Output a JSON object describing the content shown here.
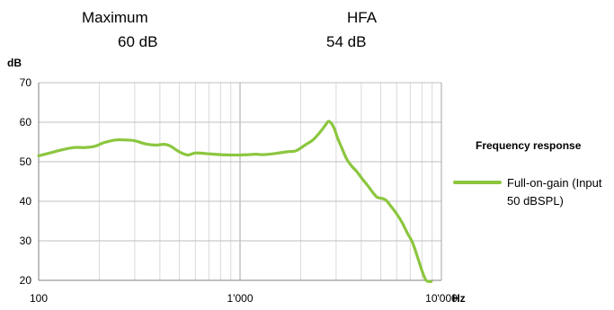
{
  "header": {
    "maximum_label": "Maximum",
    "maximum_value": "60 dB",
    "hfa_label": "HFA",
    "hfa_value": "54 dB"
  },
  "chart_data": {
    "type": "line",
    "xscale": "log",
    "xlim": [
      100,
      10000
    ],
    "ylim": [
      20,
      70
    ],
    "yticks": [
      20,
      30,
      40,
      50,
      60,
      70
    ],
    "ytick_labels": [
      "20",
      "30",
      "40",
      "50",
      "60",
      "70"
    ],
    "xticks": [
      100,
      1000,
      10000
    ],
    "xtick_labels": [
      "100",
      "1'000",
      "10'000"
    ],
    "ylabel": "dB",
    "xlabel": "Hz",
    "grid": true,
    "legend_title": "Frequency response",
    "legend_position": "right",
    "series": [
      {
        "name": "Full-on-gain (Input 50 dBSPL)",
        "color": "#8cc63f",
        "x": [
          100,
          115,
          130,
          150,
          170,
          190,
          210,
          240,
          270,
          300,
          340,
          380,
          420,
          450,
          500,
          550,
          600,
          700,
          800,
          900,
          1000,
          1100,
          1200,
          1300,
          1500,
          1700,
          1900,
          2100,
          2300,
          2500,
          2650,
          2750,
          2850,
          2950,
          3050,
          3200,
          3400,
          3600,
          3800,
          4000,
          4300,
          4600,
          4800,
          5000,
          5300,
          5600,
          6000,
          6400,
          6800,
          7200,
          7600,
          8000,
          8400,
          8900
        ],
        "y": [
          51.5,
          52.3,
          53.0,
          53.6,
          53.6,
          53.9,
          54.8,
          55.5,
          55.5,
          55.3,
          54.5,
          54.2,
          54.4,
          54.0,
          52.5,
          51.7,
          52.2,
          52.0,
          51.8,
          51.7,
          51.7,
          51.8,
          51.9,
          51.8,
          52.1,
          52.5,
          52.8,
          54.2,
          55.5,
          57.5,
          59.2,
          60.2,
          59.6,
          58.2,
          56.0,
          53.5,
          50.5,
          48.8,
          47.5,
          46.0,
          44.0,
          42.0,
          41.0,
          40.8,
          40.3,
          38.8,
          36.8,
          34.5,
          31.8,
          29.5,
          26.0,
          22.5,
          20.0,
          19.7
        ]
      }
    ]
  }
}
